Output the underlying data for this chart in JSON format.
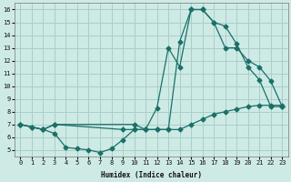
{
  "bg_color": "#ceeae5",
  "grid_color": "#aaceca",
  "line_color": "#1a7068",
  "xlabel": "Humidex (Indice chaleur)",
  "xlim": [
    -0.5,
    23.5
  ],
  "ylim": [
    4.5,
    16.5
  ],
  "xticks": [
    0,
    1,
    2,
    3,
    4,
    5,
    6,
    7,
    8,
    9,
    10,
    11,
    12,
    13,
    14,
    15,
    16,
    17,
    18,
    19,
    20,
    21,
    22,
    23
  ],
  "yticks": [
    5,
    6,
    7,
    8,
    9,
    10,
    11,
    12,
    13,
    14,
    15,
    16
  ],
  "curve1_x": [
    0,
    1,
    2,
    3,
    10,
    11,
    12,
    13,
    14,
    15,
    16,
    17,
    18,
    19,
    20,
    21,
    22,
    23
  ],
  "curve1_y": [
    7.0,
    6.8,
    6.6,
    7.0,
    7.0,
    6.6,
    8.3,
    13.0,
    11.5,
    16.0,
    16.0,
    15.0,
    14.7,
    13.3,
    11.5,
    10.5,
    8.4,
    8.4
  ],
  "curve2_x": [
    0,
    1,
    2,
    3,
    9,
    10,
    11,
    12,
    13,
    14,
    15,
    16,
    17,
    18,
    19,
    20,
    21,
    22,
    23
  ],
  "curve2_y": [
    7.0,
    6.8,
    6.6,
    7.0,
    6.6,
    6.6,
    6.6,
    6.6,
    6.6,
    13.5,
    16.0,
    16.0,
    15.0,
    13.0,
    13.0,
    12.0,
    11.5,
    10.4,
    8.4
  ],
  "curve3_x": [
    0,
    2,
    3,
    4,
    5,
    6,
    7,
    8,
    9,
    10,
    11,
    12,
    13,
    14,
    15,
    16,
    17,
    18,
    19,
    20,
    21,
    22,
    23
  ],
  "curve3_y": [
    7.0,
    6.6,
    6.3,
    5.2,
    5.1,
    5.0,
    4.8,
    5.1,
    5.8,
    6.6,
    6.6,
    6.6,
    6.6,
    6.6,
    7.0,
    7.4,
    7.8,
    8.0,
    8.2,
    8.4,
    8.5,
    8.5,
    8.5
  ]
}
